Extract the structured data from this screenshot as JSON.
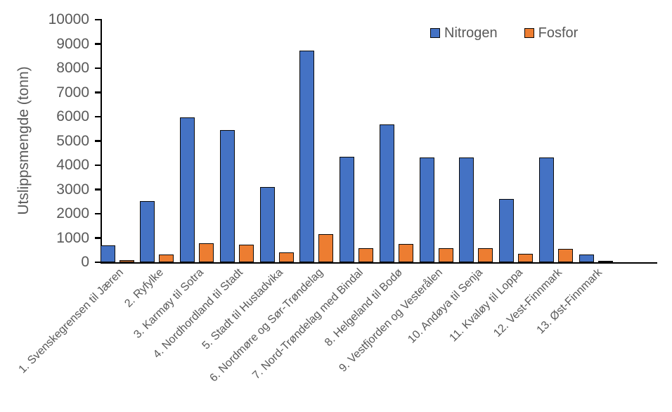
{
  "chart_data": {
    "type": "bar",
    "title": "",
    "xlabel": "",
    "ylabel": "Utslippsmengde (tonn)",
    "ylim": [
      0,
      10000
    ],
    "ytick_interval": 1000,
    "grid": false,
    "legend_position": "top-inside",
    "categories": [
      "1. Svenskegrensen til Jæren",
      "2. Ryfylke",
      "3. Karmøy til Sotra",
      "4. Nordhordland til Stadt",
      "5. Stadt til Hustadvika",
      "6. Nordmøre og Sør-Trøndelag",
      "7. Nord-Trøndelag med Bindal",
      "8. Helgeland til Bodø",
      "9. Vestfjorden og Vesterålen",
      "10. Andøya til Senja",
      "11. Kvaløy til Loppa",
      "12. Vest-Finnmark",
      "13. Øst-Finnmark"
    ],
    "series": [
      {
        "name": "Nitrogen",
        "color": "#4472C4",
        "values": [
          690,
          2510,
          5970,
          5440,
          3090,
          8720,
          4340,
          5670,
          4310,
          4320,
          2600,
          4320,
          310
        ]
      },
      {
        "name": "Fosfor",
        "color": "#ED7D31",
        "values": [
          80,
          320,
          790,
          720,
          410,
          1160,
          590,
          740,
          580,
          580,
          340,
          550,
          40
        ]
      }
    ],
    "bar_border_color": "#0a0a0a",
    "axis_color": "#000000",
    "text_color": "#595959"
  }
}
